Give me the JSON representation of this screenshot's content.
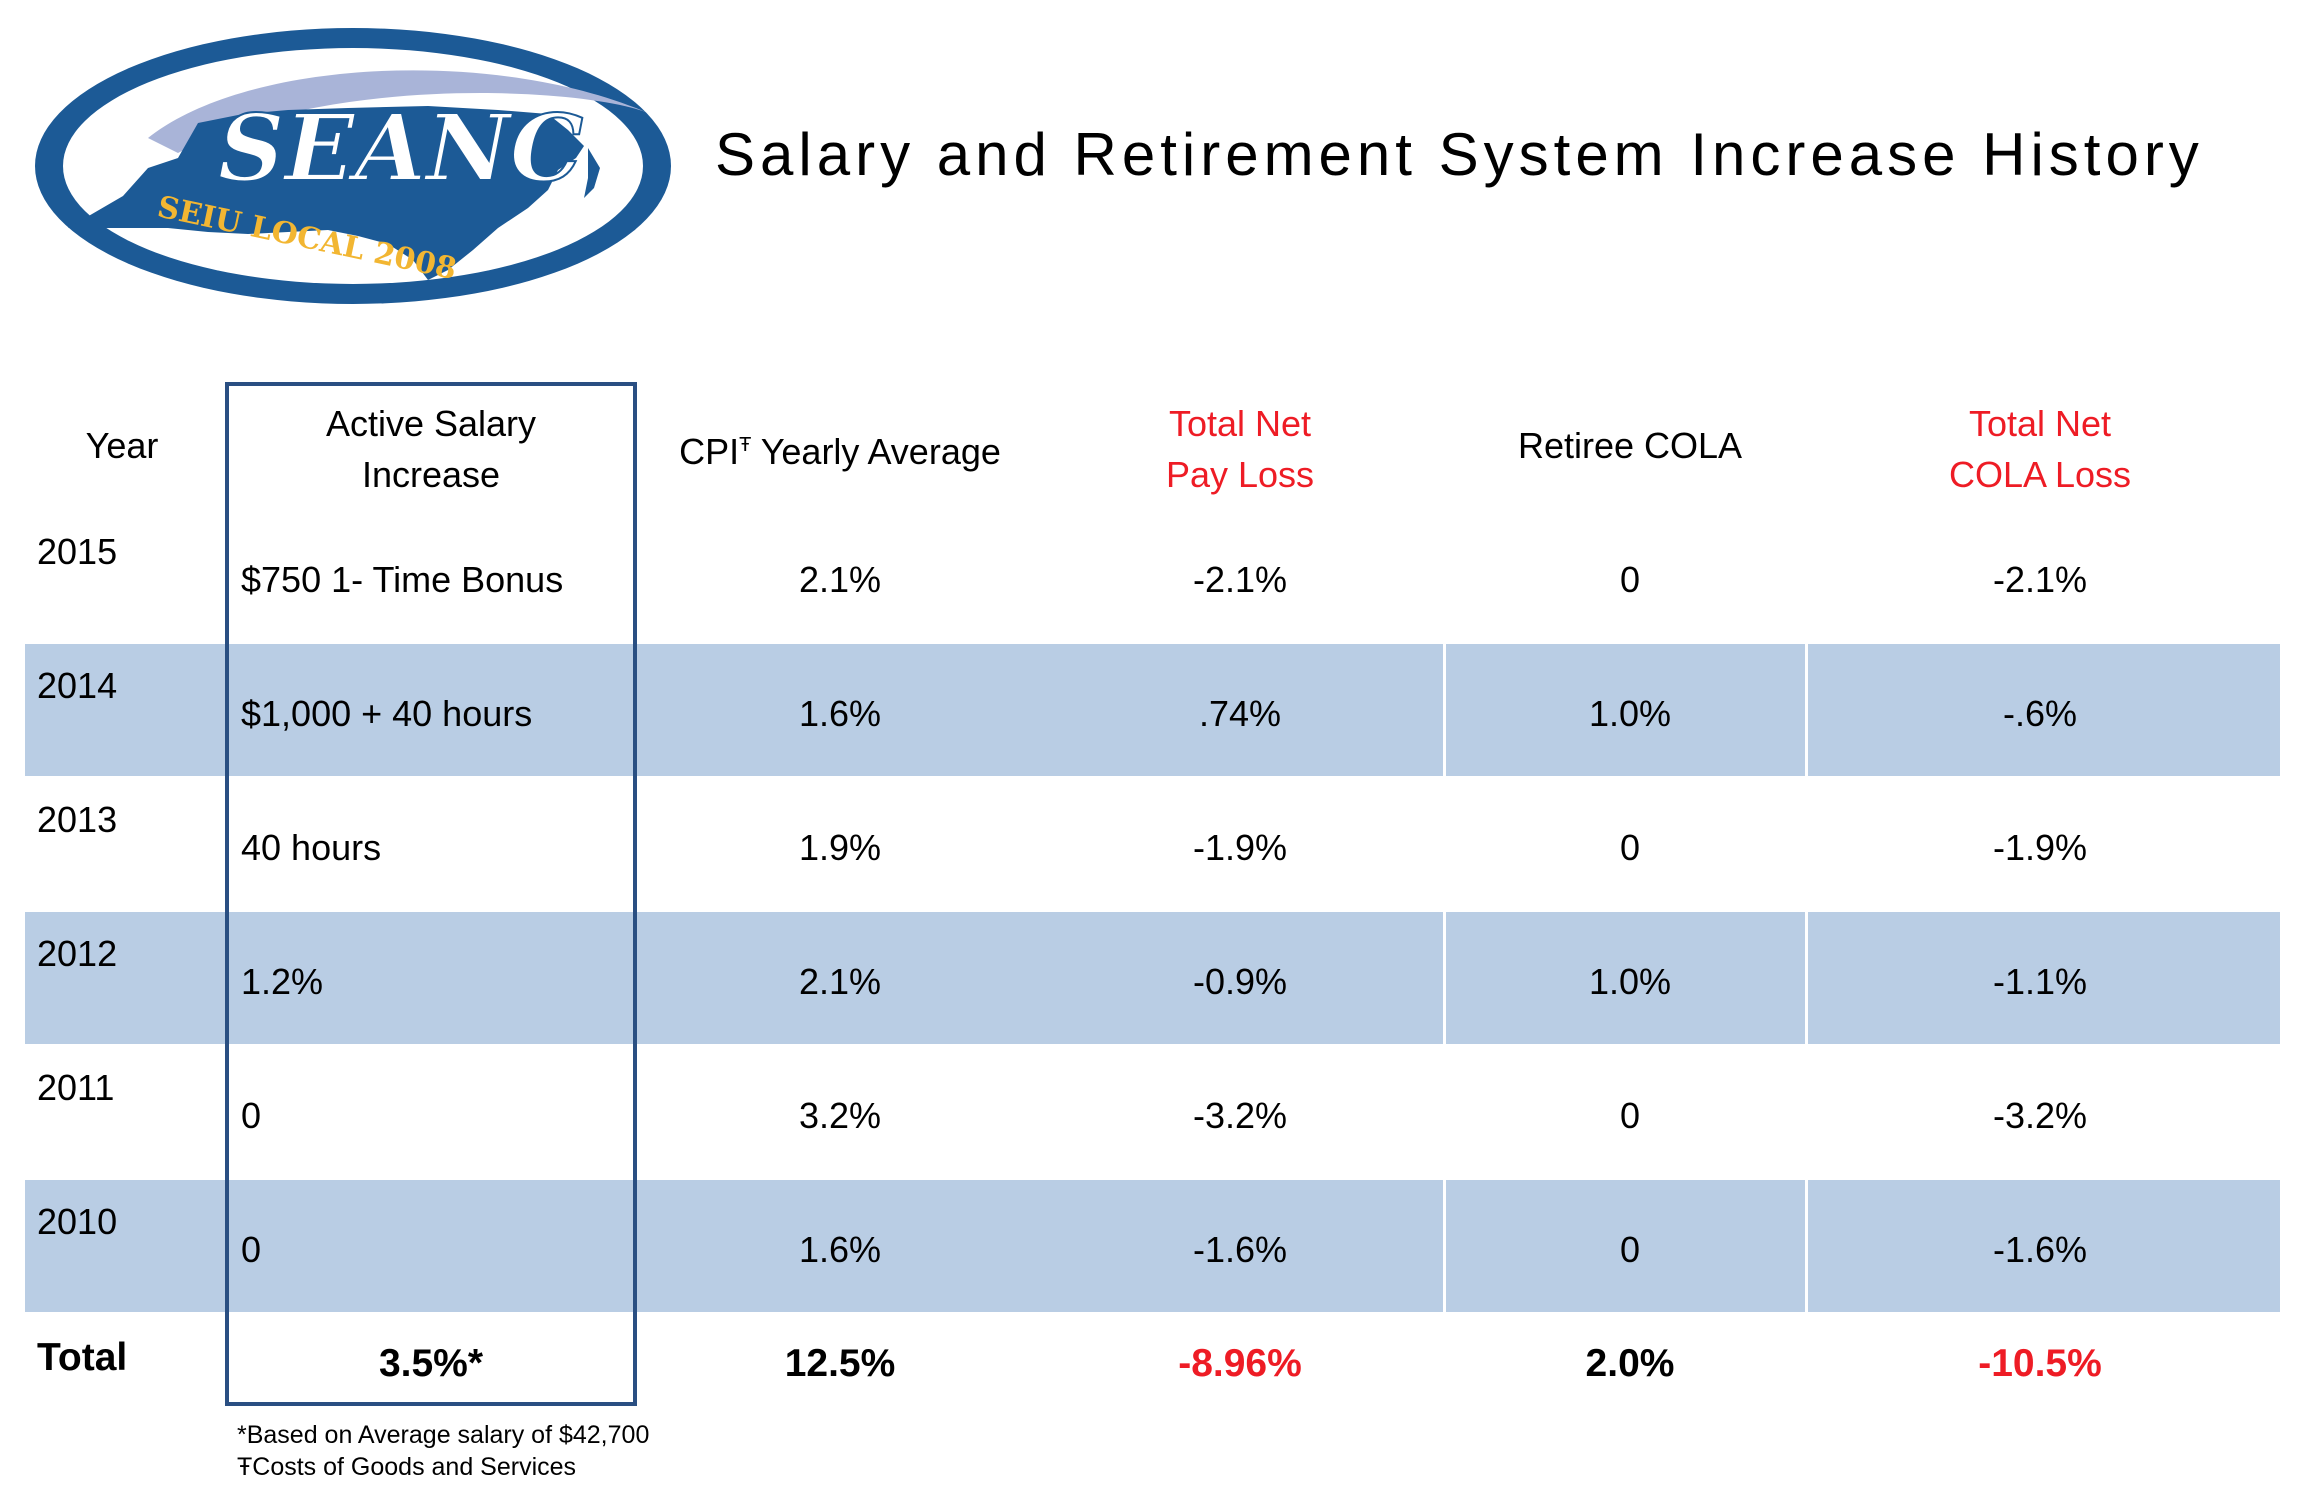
{
  "logo": {
    "org_name": "SEANC",
    "local_name": "SEIU LOCAL 2008",
    "colors": {
      "navy": "#1c5a96",
      "ring": "#a9b4d8",
      "gold": "#f2b632"
    }
  },
  "title": "Salary and Retirement System Increase History",
  "table": {
    "headers": {
      "year": "Year",
      "salary": [
        "Active Salary",
        "Increase"
      ],
      "cpi_prefix": "CPI",
      "cpi_mark": "Ŧ",
      "cpi_suffix": " Yearly Average",
      "pay_loss": [
        "Total Net",
        "Pay Loss"
      ],
      "cola": "Retiree COLA",
      "cola_loss": [
        "Total Net",
        "COLA Loss"
      ]
    },
    "rows": [
      {
        "year": "2015",
        "salary": "$750 1- Time Bonus",
        "cpi": "2.1%",
        "pay_loss": "-2.1%",
        "cola": "0",
        "cola_loss": "-2.1%"
      },
      {
        "year": "2014",
        "salary": "$1,000 + 40 hours",
        "cpi": "1.6%",
        "pay_loss": ".74%",
        "cola": "1.0%",
        "cola_loss": "-.6%"
      },
      {
        "year": "2013",
        "salary": "40 hours",
        "cpi": "1.9%",
        "pay_loss": "-1.9%",
        "cola": "0",
        "cola_loss": "-1.9%"
      },
      {
        "year": "2012",
        "salary": "1.2%",
        "cpi": "2.1%",
        "pay_loss": "-0.9%",
        "cola": "1.0%",
        "cola_loss": "-1.1%"
      },
      {
        "year": "2011",
        "salary": "0",
        "cpi": "3.2%",
        "pay_loss": "-3.2%",
        "cola": "0",
        "cola_loss": "-3.2%"
      },
      {
        "year": "2010",
        "salary": "0",
        "cpi": "1.6%",
        "pay_loss": "-1.6%",
        "cola": "0",
        "cola_loss": "-1.6%"
      }
    ],
    "total": {
      "label": "Total",
      "salary": "3.5%*",
      "cpi": "12.5%",
      "pay_loss": "-8.96%",
      "cola": "2.0%",
      "cola_loss": "-10.5%"
    },
    "band_color": "#b9cde4",
    "box_color": "#2a4f82",
    "loss_color": "#ee1c25"
  },
  "footnotes": [
    "*Based on Average salary of $42,700",
    "ŦCosts of Goods and Services"
  ]
}
